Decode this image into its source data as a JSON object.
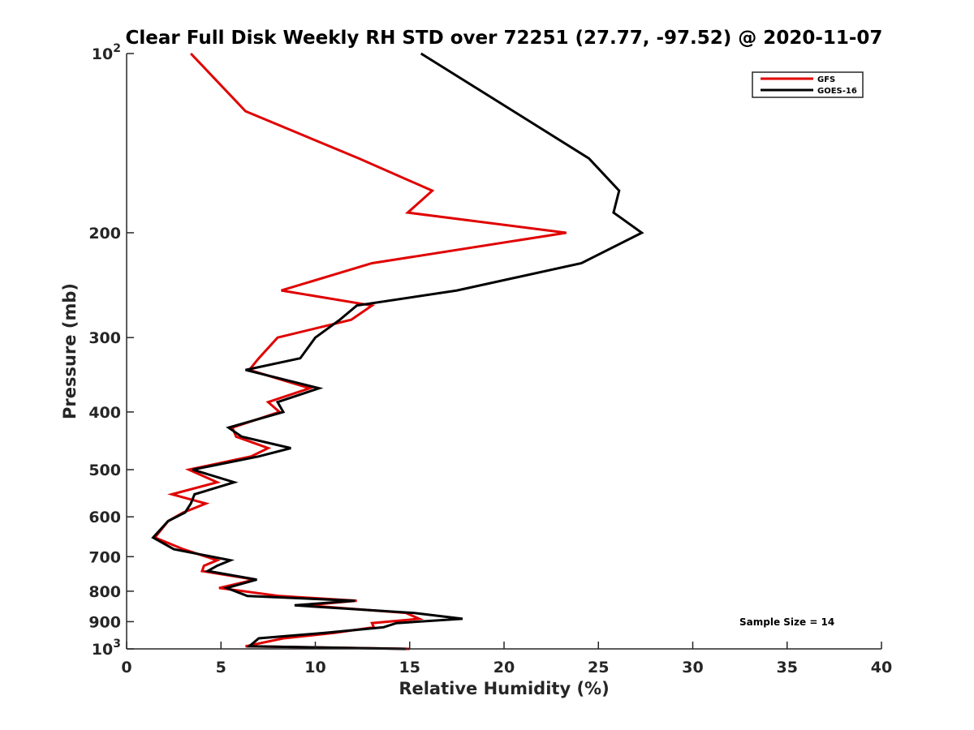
{
  "chart_data": {
    "type": "line",
    "title": "Clear Full Disk Weekly RH STD over 72251 (27.77, -97.52) @ 2020-11-07",
    "xlabel": "Relative Humidity (%)",
    "ylabel": "Pressure (mb)",
    "xlim": [
      0,
      40
    ],
    "ylim": [
      100,
      1000
    ],
    "y_scale": "log",
    "y_reversed": true,
    "grid": false,
    "legend_position": "top-right",
    "x_ticks": [
      0,
      5,
      10,
      15,
      20,
      25,
      30,
      35,
      40
    ],
    "x_tick_labels": [
      "0",
      "5",
      "10",
      "15",
      "20",
      "25",
      "30",
      "35",
      "40"
    ],
    "y_ticks": [
      100,
      200,
      300,
      400,
      500,
      600,
      700,
      800,
      900,
      1000
    ],
    "y_tick_labels": [
      {
        "base": "10",
        "exp": "2"
      },
      {
        "base": "200",
        "exp": ""
      },
      {
        "base": "300",
        "exp": ""
      },
      {
        "base": "400",
        "exp": ""
      },
      {
        "base": "500",
        "exp": ""
      },
      {
        "base": "600",
        "exp": ""
      },
      {
        "base": "700",
        "exp": ""
      },
      {
        "base": "800",
        "exp": ""
      },
      {
        "base": "900",
        "exp": ""
      },
      {
        "base": "10",
        "exp": "3"
      }
    ],
    "annotation": "Sample Size = 14",
    "series": [
      {
        "name": "GFS",
        "color": "#e00000",
        "points": [
          {
            "x": 3.4,
            "y": 100
          },
          {
            "x": 6.3,
            "y": 125
          },
          {
            "x": 12.3,
            "y": 150
          },
          {
            "x": 16.2,
            "y": 170
          },
          {
            "x": 14.9,
            "y": 185
          },
          {
            "x": 23.3,
            "y": 200
          },
          {
            "x": 13.0,
            "y": 225
          },
          {
            "x": 8.2,
            "y": 250
          },
          {
            "x": 13.0,
            "y": 265
          },
          {
            "x": 11.9,
            "y": 280
          },
          {
            "x": 8.0,
            "y": 300
          },
          {
            "x": 7.0,
            "y": 325
          },
          {
            "x": 6.5,
            "y": 340
          },
          {
            "x": 9.7,
            "y": 365
          },
          {
            "x": 7.5,
            "y": 385
          },
          {
            "x": 8.1,
            "y": 400
          },
          {
            "x": 5.6,
            "y": 425
          },
          {
            "x": 5.8,
            "y": 440
          },
          {
            "x": 7.5,
            "y": 460
          },
          {
            "x": 6.6,
            "y": 475
          },
          {
            "x": 3.3,
            "y": 500
          },
          {
            "x": 4.8,
            "y": 525
          },
          {
            "x": 2.4,
            "y": 550
          },
          {
            "x": 4.2,
            "y": 570
          },
          {
            "x": 3.0,
            "y": 590
          },
          {
            "x": 2.2,
            "y": 610
          },
          {
            "x": 1.5,
            "y": 650
          },
          {
            "x": 3.0,
            "y": 680
          },
          {
            "x": 4.8,
            "y": 710
          },
          {
            "x": 4.1,
            "y": 725
          },
          {
            "x": 4.0,
            "y": 740
          },
          {
            "x": 6.8,
            "y": 765
          },
          {
            "x": 4.9,
            "y": 790
          },
          {
            "x": 8.1,
            "y": 815
          },
          {
            "x": 12.2,
            "y": 830
          },
          {
            "x": 9.5,
            "y": 845
          },
          {
            "x": 14.8,
            "y": 870
          },
          {
            "x": 15.5,
            "y": 890
          },
          {
            "x": 13.0,
            "y": 905
          },
          {
            "x": 13.1,
            "y": 920
          },
          {
            "x": 11.0,
            "y": 940
          },
          {
            "x": 8.3,
            "y": 960
          },
          {
            "x": 6.3,
            "y": 990
          },
          {
            "x": 15.0,
            "y": 1000
          }
        ]
      },
      {
        "name": "GOES-16",
        "color": "#000000",
        "points": [
          {
            "x": 15.6,
            "y": 100
          },
          {
            "x": 20.5,
            "y": 125
          },
          {
            "x": 24.5,
            "y": 150
          },
          {
            "x": 26.1,
            "y": 170
          },
          {
            "x": 25.8,
            "y": 185
          },
          {
            "x": 27.3,
            "y": 200
          },
          {
            "x": 24.1,
            "y": 225
          },
          {
            "x": 17.5,
            "y": 250
          },
          {
            "x": 12.2,
            "y": 265
          },
          {
            "x": 11.3,
            "y": 280
          },
          {
            "x": 10.0,
            "y": 300
          },
          {
            "x": 9.2,
            "y": 325
          },
          {
            "x": 6.3,
            "y": 340
          },
          {
            "x": 10.2,
            "y": 365
          },
          {
            "x": 8.0,
            "y": 385
          },
          {
            "x": 8.3,
            "y": 400
          },
          {
            "x": 5.4,
            "y": 425
          },
          {
            "x": 6.1,
            "y": 440
          },
          {
            "x": 8.7,
            "y": 460
          },
          {
            "x": 7.0,
            "y": 475
          },
          {
            "x": 3.5,
            "y": 500
          },
          {
            "x": 5.7,
            "y": 525
          },
          {
            "x": 3.6,
            "y": 550
          },
          {
            "x": 3.4,
            "y": 570
          },
          {
            "x": 3.1,
            "y": 590
          },
          {
            "x": 2.2,
            "y": 610
          },
          {
            "x": 1.4,
            "y": 650
          },
          {
            "x": 2.5,
            "y": 680
          },
          {
            "x": 5.5,
            "y": 710
          },
          {
            "x": 4.8,
            "y": 725
          },
          {
            "x": 4.3,
            "y": 740
          },
          {
            "x": 6.9,
            "y": 765
          },
          {
            "x": 5.3,
            "y": 790
          },
          {
            "x": 6.4,
            "y": 815
          },
          {
            "x": 12.1,
            "y": 830
          },
          {
            "x": 8.9,
            "y": 845
          },
          {
            "x": 15.2,
            "y": 870
          },
          {
            "x": 17.8,
            "y": 890
          },
          {
            "x": 14.3,
            "y": 905
          },
          {
            "x": 13.6,
            "y": 920
          },
          {
            "x": 10.5,
            "y": 940
          },
          {
            "x": 7.0,
            "y": 960
          },
          {
            "x": 6.5,
            "y": 990
          },
          {
            "x": 14.8,
            "y": 1000
          }
        ]
      }
    ]
  }
}
